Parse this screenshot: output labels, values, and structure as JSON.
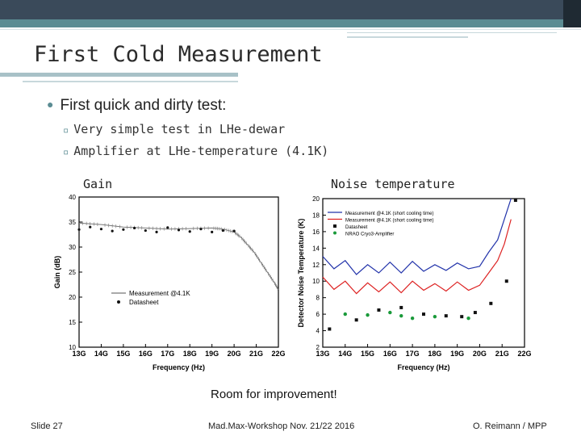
{
  "slide": {
    "title": "First Cold Measurement",
    "bullet": "First quick and dirty test:",
    "sub_bullets": [
      "Very simple test in LHe-dewar",
      "Amplifier at LHe-temperature (4.1K)"
    ],
    "gain_label": "Gain",
    "noise_label": "Noise temperature",
    "improvement": "Room for improvement!",
    "footer_left": "Slide 27",
    "footer_center": "Mad.Max-Workshop Nov. 21/22 2016",
    "footer_right": "O. Reimann / MPP",
    "colors": {
      "accent": "#5b8c93",
      "dark_bar": "#3a4a5a"
    }
  },
  "chart_data": [
    {
      "type": "line",
      "xlabel": "Frequency (Hz)",
      "ylabel": "Gain (dB)",
      "x_ticks": [
        "13G",
        "14G",
        "15G",
        "16G",
        "17G",
        "18G",
        "19G",
        "20G",
        "21G",
        "22G"
      ],
      "y_ticks": [
        "10",
        "15",
        "20",
        "25",
        "30",
        "35",
        "40"
      ],
      "xlim": [
        13,
        22
      ],
      "ylim": [
        10,
        40
      ],
      "grid": false,
      "legend_position": "bottom-left",
      "series": [
        {
          "name": "Measurement @4.1K",
          "x": [
            13,
            14,
            15,
            16,
            17,
            18,
            19,
            19.5,
            20,
            20.3,
            20.6,
            20.9,
            21.2,
            21.5,
            21.8,
            22
          ],
          "y": [
            34.8,
            34.5,
            34.0,
            33.8,
            33.6,
            33.7,
            33.8,
            33.6,
            33.0,
            32.0,
            30.5,
            29.0,
            27.0,
            25.0,
            23.0,
            21.5
          ]
        },
        {
          "name": "Datasheet",
          "x": [
            13,
            13.5,
            14,
            14.5,
            15,
            15.5,
            16,
            16.5,
            17,
            17.5,
            18,
            18.5,
            19,
            19.5,
            20
          ],
          "y": [
            33.5,
            34.0,
            33.6,
            33.2,
            33.5,
            33.8,
            33.3,
            33.0,
            33.9,
            33.4,
            33.1,
            33.6,
            33.0,
            33.3,
            33.2
          ]
        }
      ]
    },
    {
      "type": "line",
      "xlabel": "Frequency (Hz)",
      "ylabel": "Detector Noise Temperature (K)",
      "x_ticks": [
        "13G",
        "14G",
        "15G",
        "16G",
        "17G",
        "18G",
        "19G",
        "20G",
        "21G",
        "22G"
      ],
      "y_ticks": [
        "2",
        "4",
        "6",
        "8",
        "10",
        "12",
        "14",
        "16",
        "18",
        "20"
      ],
      "xlim": [
        13,
        22
      ],
      "ylim": [
        2,
        20
      ],
      "grid": false,
      "legend_position": "top-left",
      "series": [
        {
          "name": "Measurement @4.1K (short cooling time)",
          "x": [
            13,
            13.5,
            14,
            14.5,
            15,
            15.5,
            16,
            16.5,
            17,
            17.5,
            18,
            18.5,
            19,
            19.5,
            20,
            20.4,
            20.8,
            21.1,
            21.4
          ],
          "y": [
            13.0,
            11.5,
            12.5,
            10.8,
            12.0,
            11.0,
            12.3,
            11.0,
            12.4,
            11.2,
            12.0,
            11.3,
            12.2,
            11.5,
            11.8,
            13.5,
            15.0,
            17.5,
            20.0
          ]
        },
        {
          "name": "Measurement @4.1K (short cooling time)",
          "x": [
            13,
            13.5,
            14,
            14.5,
            15,
            15.5,
            16,
            16.5,
            17,
            17.5,
            18,
            18.5,
            19,
            19.5,
            20,
            20.4,
            20.8,
            21.1,
            21.4
          ],
          "y": [
            10.5,
            9.0,
            10.0,
            8.5,
            9.8,
            8.7,
            9.9,
            8.6,
            10.0,
            8.9,
            9.7,
            8.8,
            9.9,
            8.9,
            9.5,
            11.0,
            12.5,
            14.5,
            17.5
          ]
        },
        {
          "name": "Datasheet",
          "x": [
            13.3,
            14.5,
            15.5,
            16.5,
            17.5,
            18.5,
            19.2,
            19.8,
            20.5,
            21.2,
            21.6
          ],
          "y": [
            4.2,
            5.3,
            6.5,
            6.8,
            6.0,
            5.8,
            5.7,
            6.2,
            7.3,
            10.0,
            19.8
          ]
        },
        {
          "name": "NRAO Cryo3-Amplifier",
          "x": [
            14,
            15,
            16,
            16.5,
            17,
            18,
            19.5
          ],
          "y": [
            6.0,
            5.9,
            6.2,
            5.8,
            5.5,
            5.7,
            5.5
          ]
        }
      ]
    }
  ]
}
